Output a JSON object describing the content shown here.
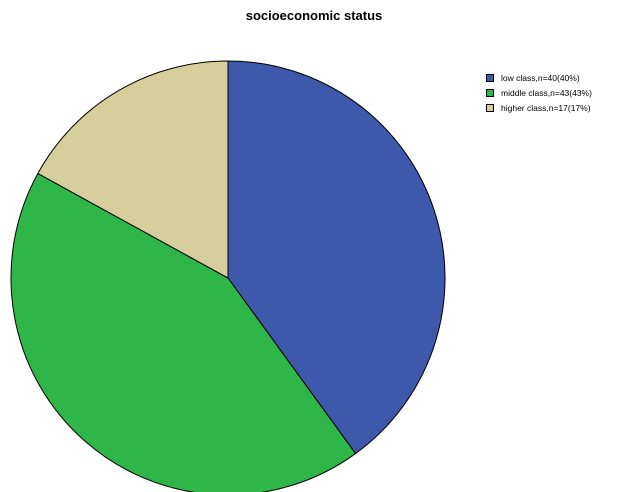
{
  "chart_data": {
    "type": "pie",
    "title": "socioeconomic status",
    "legend_position": "top-right",
    "slices": [
      {
        "label": "low class,n=40(40%)",
        "value": 40,
        "color": "#3e58ac"
      },
      {
        "label": "middle class,n=43(43%)",
        "value": 43,
        "color": "#2eb648"
      },
      {
        "label": "higher class,n=17(17%)",
        "value": 17,
        "color": "#d6cf9b"
      }
    ]
  }
}
